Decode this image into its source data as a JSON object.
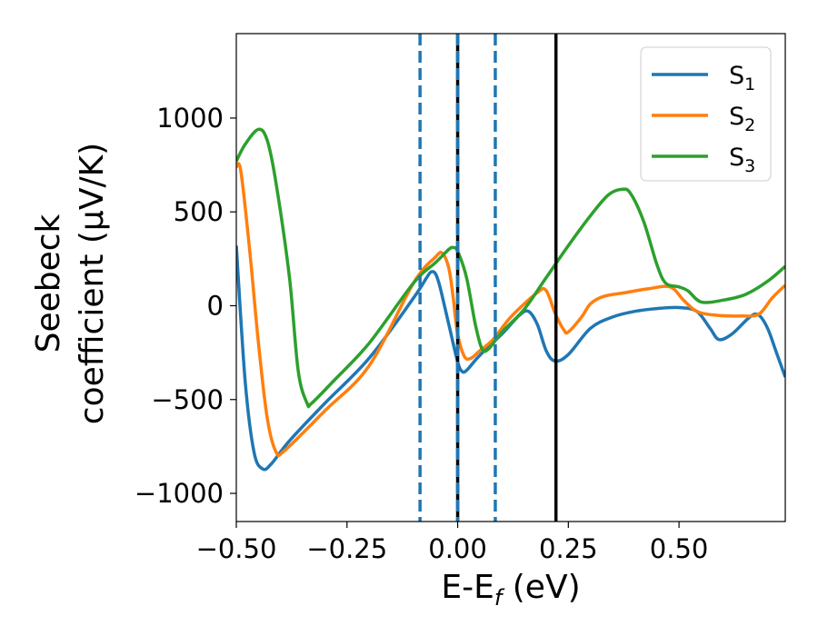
{
  "chart_data": {
    "type": "line",
    "xlabel": "E-E",
    "xlabel_subscript": "f",
    "xlabel_unit": " (eV)",
    "ylabel_line1": "Seebeck",
    "ylabel_line2": "coefficient  (μV/K)",
    "xlim": [
      -0.5,
      0.74
    ],
    "ylim": [
      -1150,
      1450
    ],
    "xticks": [
      -0.5,
      -0.25,
      0.0,
      0.25,
      0.5
    ],
    "xtick_labels": [
      "−0.50",
      "−0.25",
      "0.00",
      "0.25",
      "0.50"
    ],
    "yticks": [
      -1000,
      -500,
      0,
      500,
      1000
    ],
    "ytick_labels": [
      "−1000",
      "−500",
      "0",
      "500",
      "1000"
    ],
    "grid": false,
    "legend_position": "top-right",
    "vlines": [
      {
        "x": -0.085,
        "style": "dashed",
        "color": "#1f77b4"
      },
      {
        "x": 0.0,
        "style": "solid",
        "color": "#000000"
      },
      {
        "x": 0.0,
        "style": "dashed",
        "color": "#1f77b4"
      },
      {
        "x": 0.085,
        "style": "dashed",
        "color": "#1f77b4"
      },
      {
        "x": 0.222,
        "style": "solid",
        "color": "#000000"
      }
    ],
    "series": [
      {
        "name": "S",
        "subscript": "1",
        "color": "#1f77b4",
        "points": [
          [
            -0.5,
            320
          ],
          [
            -0.48,
            -400
          ],
          [
            -0.46,
            -780
          ],
          [
            -0.44,
            -870
          ],
          [
            -0.42,
            -840
          ],
          [
            -0.38,
            -720
          ],
          [
            -0.3,
            -520
          ],
          [
            -0.2,
            -280
          ],
          [
            -0.1,
            40
          ],
          [
            -0.07,
            150
          ],
          [
            -0.06,
            180
          ],
          [
            -0.05,
            170
          ],
          [
            -0.04,
            100
          ],
          [
            -0.02,
            -100
          ],
          [
            0.0,
            -300
          ],
          [
            0.01,
            -350
          ],
          [
            0.02,
            -345
          ],
          [
            0.04,
            -290
          ],
          [
            0.06,
            -240
          ],
          [
            0.1,
            -150
          ],
          [
            0.14,
            -50
          ],
          [
            0.16,
            -30
          ],
          [
            0.18,
            -100
          ],
          [
            0.2,
            -240
          ],
          [
            0.22,
            -295
          ],
          [
            0.25,
            -260
          ],
          [
            0.3,
            -120
          ],
          [
            0.35,
            -60
          ],
          [
            0.4,
            -30
          ],
          [
            0.45,
            -15
          ],
          [
            0.5,
            -10
          ],
          [
            0.54,
            -30
          ],
          [
            0.57,
            -120
          ],
          [
            0.59,
            -180
          ],
          [
            0.62,
            -150
          ],
          [
            0.66,
            -60
          ],
          [
            0.68,
            -50
          ],
          [
            0.7,
            -120
          ],
          [
            0.72,
            -250
          ],
          [
            0.74,
            -380
          ]
        ]
      },
      {
        "name": "S",
        "subscript": "2",
        "color": "#ff7f0e",
        "points": [
          [
            -0.5,
            740
          ],
          [
            -0.49,
            720
          ],
          [
            -0.47,
            300
          ],
          [
            -0.45,
            -200
          ],
          [
            -0.43,
            -600
          ],
          [
            -0.41,
            -780
          ],
          [
            -0.39,
            -770
          ],
          [
            -0.3,
            -560
          ],
          [
            -0.2,
            -320
          ],
          [
            -0.1,
            120
          ],
          [
            -0.05,
            260
          ],
          [
            -0.035,
            280
          ],
          [
            -0.02,
            200
          ],
          [
            -0.01,
            40
          ],
          [
            0.0,
            -150
          ],
          [
            0.015,
            -270
          ],
          [
            0.03,
            -280
          ],
          [
            0.05,
            -240
          ],
          [
            0.08,
            -180
          ],
          [
            0.12,
            -60
          ],
          [
            0.18,
            70
          ],
          [
            0.2,
            80
          ],
          [
            0.22,
            -40
          ],
          [
            0.24,
            -130
          ],
          [
            0.25,
            -140
          ],
          [
            0.28,
            -60
          ],
          [
            0.3,
            10
          ],
          [
            0.33,
            50
          ],
          [
            0.38,
            70
          ],
          [
            0.43,
            90
          ],
          [
            0.48,
            100
          ],
          [
            0.51,
            30
          ],
          [
            0.54,
            -30
          ],
          [
            0.58,
            -50
          ],
          [
            0.64,
            -55
          ],
          [
            0.68,
            -45
          ],
          [
            0.71,
            40
          ],
          [
            0.74,
            110
          ]
        ]
      },
      {
        "name": "S",
        "subscript": "3",
        "color": "#2ca02c",
        "points": [
          [
            -0.5,
            770
          ],
          [
            -0.48,
            860
          ],
          [
            -0.45,
            940
          ],
          [
            -0.43,
            880
          ],
          [
            -0.41,
            650
          ],
          [
            -0.38,
            150
          ],
          [
            -0.36,
            -350
          ],
          [
            -0.34,
            -520
          ],
          [
            -0.33,
            -520
          ],
          [
            -0.28,
            -400
          ],
          [
            -0.2,
            -200
          ],
          [
            -0.1,
            120
          ],
          [
            -0.05,
            230
          ],
          [
            -0.02,
            300
          ],
          [
            -0.01,
            310
          ],
          [
            0.0,
            290
          ],
          [
            0.02,
            150
          ],
          [
            0.04,
            -100
          ],
          [
            0.055,
            -230
          ],
          [
            0.07,
            -230
          ],
          [
            0.1,
            -140
          ],
          [
            0.15,
            -20
          ],
          [
            0.2,
            150
          ],
          [
            0.25,
            320
          ],
          [
            0.3,
            480
          ],
          [
            0.34,
            590
          ],
          [
            0.37,
            620
          ],
          [
            0.39,
            600
          ],
          [
            0.42,
            450
          ],
          [
            0.45,
            220
          ],
          [
            0.47,
            120
          ],
          [
            0.5,
            100
          ],
          [
            0.52,
            80
          ],
          [
            0.55,
            20
          ],
          [
            0.6,
            30
          ],
          [
            0.65,
            60
          ],
          [
            0.7,
            130
          ],
          [
            0.74,
            210
          ]
        ]
      }
    ]
  }
}
